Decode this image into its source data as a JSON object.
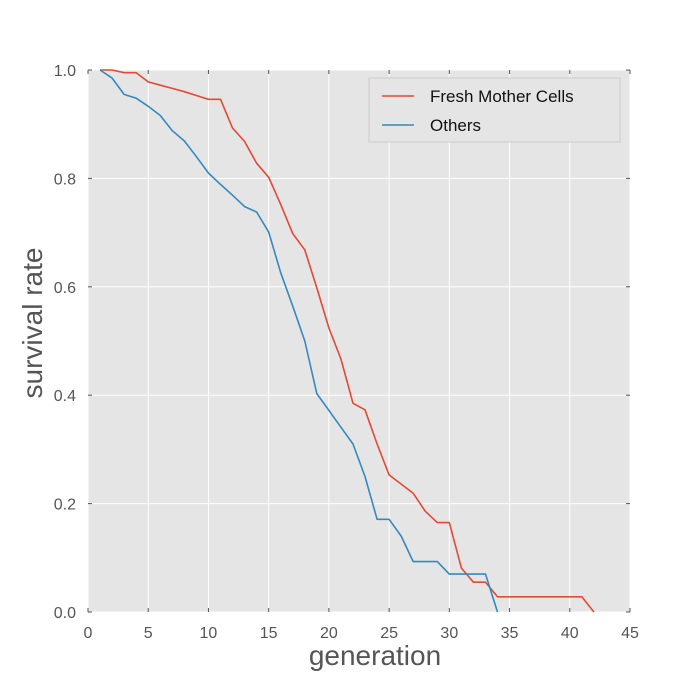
{
  "chart_data": {
    "type": "line",
    "xlabel": "generation",
    "ylabel": "survival rate",
    "xlim": [
      0,
      45
    ],
    "ylim": [
      0,
      1.0
    ],
    "xticks": [
      0,
      5,
      10,
      15,
      20,
      25,
      30,
      35,
      40,
      45
    ],
    "yticks": [
      0.0,
      0.2,
      0.4,
      0.6,
      0.8,
      1.0
    ],
    "xtick_labels": [
      "0",
      "5",
      "10",
      "15",
      "20",
      "25",
      "30",
      "35",
      "40",
      "45"
    ],
    "ytick_labels": [
      "0.0",
      "0.2",
      "0.4",
      "0.6",
      "0.8",
      "1.0"
    ],
    "grid": true,
    "legend_position": "top-right",
    "background": "#e5e5e5",
    "series": [
      {
        "name": "Fresh Mother Cells",
        "color": "#e24a33",
        "x": [
          1,
          2,
          3,
          4,
          5,
          6,
          7,
          8,
          9,
          10,
          11,
          12,
          13,
          14,
          15,
          16,
          17,
          18,
          19,
          20,
          21,
          22,
          23,
          24,
          25,
          26,
          27,
          28,
          29,
          30,
          31,
          32,
          33,
          34,
          35,
          36,
          37,
          38,
          39,
          40,
          41,
          42
        ],
        "y": [
          1.0,
          1.0,
          0.995,
          0.995,
          0.978,
          0.972,
          0.966,
          0.96,
          0.953,
          0.946,
          0.946,
          0.893,
          0.868,
          0.828,
          0.802,
          0.752,
          0.698,
          0.668,
          0.598,
          0.524,
          0.467,
          0.385,
          0.373,
          0.31,
          0.253,
          0.236,
          0.219,
          0.186,
          0.165,
          0.165,
          0.081,
          0.055,
          0.055,
          0.028,
          0.028,
          0.028,
          0.028,
          0.028,
          0.028,
          0.028,
          0.028,
          0.0
        ]
      },
      {
        "name": "Others",
        "color": "#348abd",
        "x": [
          1,
          2,
          3,
          4,
          5,
          6,
          7,
          8,
          9,
          10,
          11,
          12,
          13,
          14,
          15,
          16,
          17,
          18,
          19,
          20,
          21,
          22,
          23,
          24,
          25,
          26,
          27,
          28,
          29,
          30,
          31,
          32,
          33,
          34
        ],
        "y": [
          1.0,
          0.985,
          0.955,
          0.948,
          0.933,
          0.916,
          0.888,
          0.869,
          0.84,
          0.81,
          0.789,
          0.769,
          0.748,
          0.738,
          0.701,
          0.626,
          0.564,
          0.5,
          0.403,
          0.372,
          0.341,
          0.31,
          0.25,
          0.171,
          0.171,
          0.14,
          0.093,
          0.093,
          0.093,
          0.07,
          0.07,
          0.07,
          0.07,
          0.0
        ]
      }
    ]
  }
}
